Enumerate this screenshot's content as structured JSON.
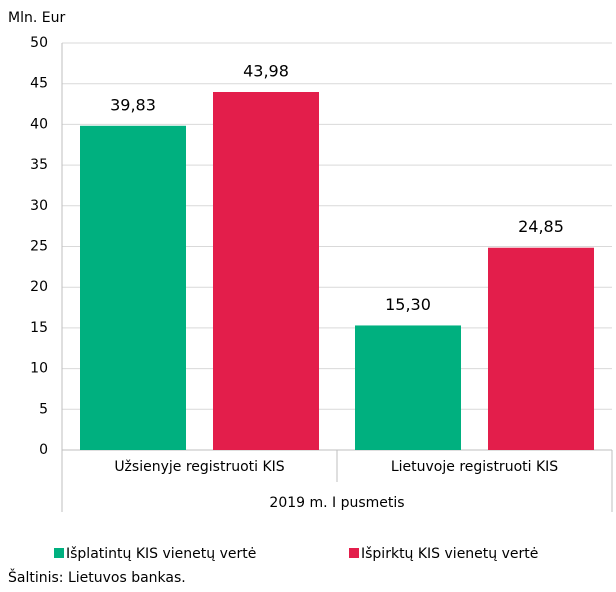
{
  "chart_data": {
    "type": "bar",
    "y_axis_label": "Mln. Eur",
    "categories": [
      "Užsienyje registruoti KIS",
      "Lietuvoje registruoti KIS"
    ],
    "group_label": "2019 m. I pusmetis",
    "series": [
      {
        "name": "Išplatintų KIS vienetų vertė",
        "color": "#00b07f",
        "values": [
          39.83,
          15.3
        ],
        "value_labels": [
          "39,83",
          "15,30"
        ]
      },
      {
        "name": "Išpirktų KIS vienetų vertė",
        "color": "#e31e4b",
        "values": [
          43.98,
          24.85
        ],
        "value_labels": [
          "43,98",
          "24,85"
        ]
      }
    ],
    "ylim": [
      0,
      50
    ],
    "yticks": [
      0,
      5,
      10,
      15,
      20,
      25,
      30,
      35,
      40,
      45,
      50
    ],
    "grid": true,
    "source": "Šaltinis: Lietuvos bankas."
  }
}
